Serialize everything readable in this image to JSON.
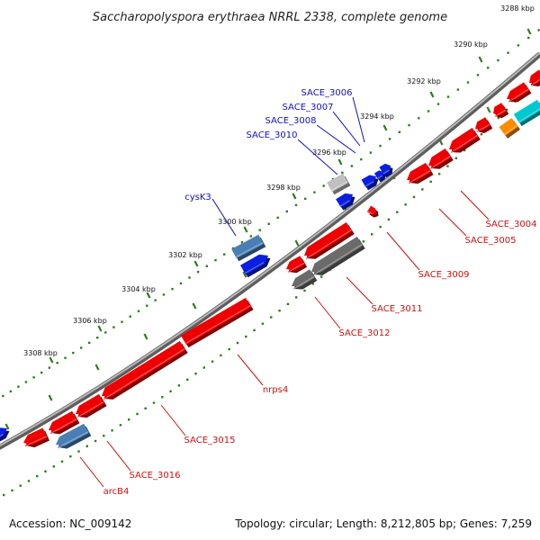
{
  "title": "Saccharopolyspora erythraea NRRL 2338, complete genome",
  "footer": {
    "accession": "Accession: NC_009142",
    "topology": "Topology: circular; Length: 8,212,805 bp; Genes: 7,259"
  },
  "colors": {
    "backbone": "#8c8c8c",
    "tick": "#2e7d1c",
    "forward_label": "#1010c8",
    "reverse_label": "#d01010",
    "red_gene": "#ee0000",
    "blue_gene": "#0a1fe0",
    "steel_gene": "#4a7fb5",
    "gray_gene": "#6b6b6b",
    "light_gene": "#c0c0c0",
    "orange_gene": "#ff8c00",
    "cyan_gene": "#00c8d0"
  },
  "ticks": [
    {
      "label": "3288 kbp"
    },
    {
      "label": "3290 kbp"
    },
    {
      "label": "3292 kbp"
    },
    {
      "label": "3294 kbp"
    },
    {
      "label": "3296 kbp"
    },
    {
      "label": "3298 kbp"
    },
    {
      "label": "3300 kbp"
    },
    {
      "label": "3302 kbp"
    },
    {
      "label": "3304 kbp"
    },
    {
      "label": "3306 kbp"
    },
    {
      "label": "3308 kbp"
    }
  ],
  "gene_labels": [
    {
      "name": "SACE_3006",
      "strand": "forward"
    },
    {
      "name": "SACE_3007",
      "strand": "forward"
    },
    {
      "name": "SACE_3008",
      "strand": "forward"
    },
    {
      "name": "SACE_3010",
      "strand": "forward"
    },
    {
      "name": "cysK3",
      "strand": "forward"
    },
    {
      "name": "SACE_3004",
      "strand": "reverse"
    },
    {
      "name": "SACE_3005",
      "strand": "reverse"
    },
    {
      "name": "SACE_3009",
      "strand": "reverse"
    },
    {
      "name": "SACE_3011",
      "strand": "reverse"
    },
    {
      "name": "SACE_3012",
      "strand": "reverse"
    },
    {
      "name": "nrps4",
      "strand": "reverse"
    },
    {
      "name": "SACE_3015",
      "strand": "reverse"
    },
    {
      "name": "SACE_3016",
      "strand": "reverse"
    },
    {
      "name": "arcB4",
      "strand": "reverse"
    }
  ]
}
